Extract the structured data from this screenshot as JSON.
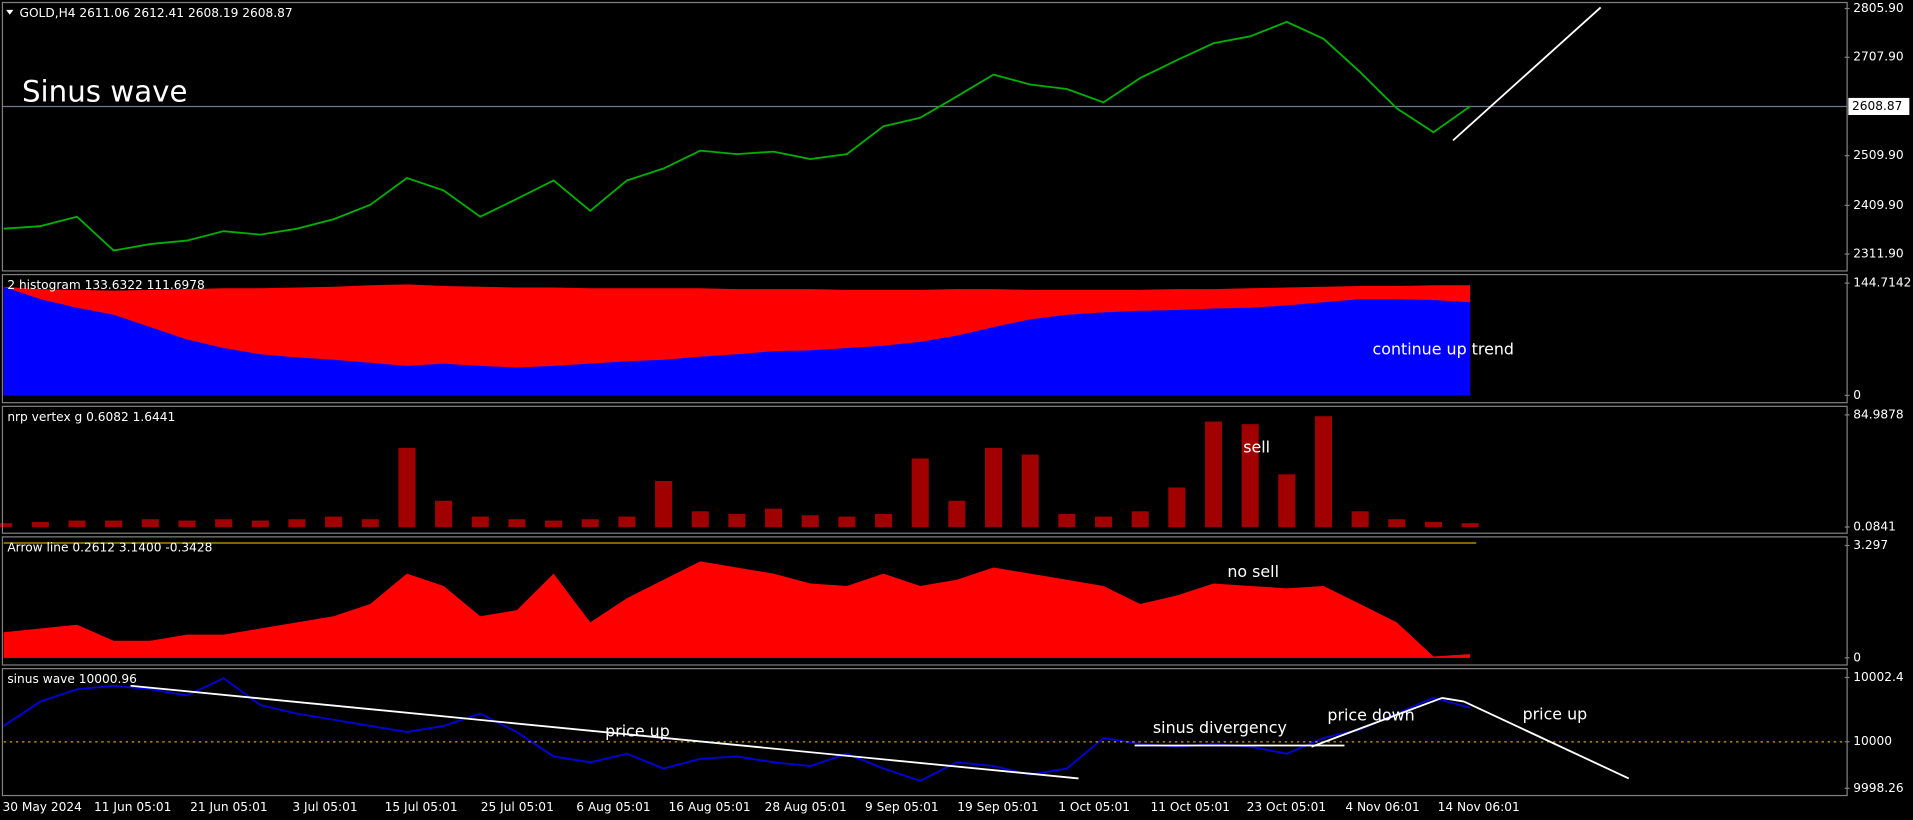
{
  "time_axis": [
    "30 May 2024",
    "11 Jun 05:01",
    "21 Jun 05:01",
    "3 Jul 05:01",
    "15 Jul 05:01",
    "25 Jul 05:01",
    "6 Aug 05:01",
    "16 Aug 05:01",
    "28 Aug 05:01",
    "9 Sep 05:01",
    "19 Sep 05:01",
    "1 Oct 05:01",
    "11 Oct 05:01",
    "23 Oct 05:01",
    "4 Nov 06:01",
    "14 Nov 06:01"
  ],
  "chart_data": [
    {
      "type": "line",
      "title": "GOLD,H4  2611.06 2612.41 2608.19 2608.87",
      "annotations": [
        "Sinus wave"
      ],
      "current_price": 2608.87,
      "series": [
        {
          "color": "#00b000",
          "values": [
            2363,
            2368,
            2387,
            2319,
            2332,
            2339,
            2358,
            2351,
            2363,
            2382,
            2411,
            2465,
            2440,
            2387,
            2423,
            2460,
            2399,
            2460,
            2484,
            2520,
            2513,
            2518,
            2503,
            2513,
            2569,
            2586,
            2629,
            2673,
            2653,
            2644,
            2617,
            2666,
            2702,
            2736,
            2750,
            2779,
            2745,
            2678,
            2605,
            2557,
            2609
          ]
        }
      ],
      "ylim": [
        2278,
        2818
      ],
      "yticks": [
        {
          "value": 2805.9,
          "label": "2805.90"
        },
        {
          "value": 2707.9,
          "label": "2707.90"
        },
        {
          "value": 2509.9,
          "label": "2509.90"
        },
        {
          "value": 2409.9,
          "label": "2409.90"
        },
        {
          "value": 2311.9,
          "label": "2311.90"
        }
      ]
    },
    {
      "type": "area",
      "title": "2 histogram 133.6322 111.6978",
      "annotations": [
        "continue up trend"
      ],
      "series": [
        {
          "color": "#ff0000",
          "values": [
            140,
            137,
            136,
            135,
            136,
            137,
            138,
            138,
            139,
            140,
            142,
            143,
            141,
            140,
            139,
            139,
            138,
            138,
            138,
            138,
            137,
            137,
            137,
            136,
            136,
            136,
            137,
            137,
            136,
            136,
            136,
            136,
            137,
            137,
            138,
            139,
            140,
            141,
            141,
            142,
            142
          ]
        },
        {
          "color": "#0000ff",
          "values": [
            140,
            124,
            113,
            104,
            88,
            72,
            61,
            53,
            49,
            46,
            42,
            38,
            41,
            38,
            36,
            38,
            41,
            44,
            46,
            50,
            53,
            57,
            58,
            61,
            64,
            69,
            77,
            88,
            98,
            104,
            107,
            109,
            110,
            112,
            113,
            116,
            120,
            124,
            124,
            123,
            120
          ]
        }
      ],
      "ylim": [
        -9.4,
        155.7
      ],
      "yticks": [
        144.7142,
        0
      ]
    },
    {
      "type": "bar",
      "title": "nrp vertex g 0.6082 1.6441",
      "annotations": [
        "sell"
      ],
      "series": [
        {
          "color": "#a00000",
          "values": [
            3,
            4,
            5,
            5,
            6,
            5,
            6,
            5,
            6,
            8,
            6,
            60,
            20,
            8,
            6,
            5,
            6,
            8,
            35,
            12,
            10,
            14,
            9,
            8,
            10,
            52,
            20,
            60,
            55,
            10,
            8,
            12,
            30,
            80,
            78,
            40,
            84,
            12,
            6,
            4,
            3
          ]
        }
      ],
      "ylim": [
        -4.6,
        91.5
      ],
      "yticks": [
        84.9878,
        0.0841
      ]
    },
    {
      "type": "area",
      "title": "Arrow line 0.2612 3.1400 -0.3428",
      "annotations": [
        "no sell"
      ],
      "series": [
        {
          "color": "#ff0000",
          "values": [
            0.75,
            0.86,
            0.97,
            0.5,
            0.5,
            0.68,
            0.68,
            0.86,
            1.04,
            1.22,
            1.58,
            2.47,
            2.11,
            1.22,
            1.4,
            2.47,
            1.04,
            1.75,
            2.29,
            2.83,
            2.65,
            2.47,
            2.18,
            2.11,
            2.47,
            2.11,
            2.29,
            2.65,
            2.47,
            2.29,
            2.11,
            1.58,
            1.83,
            2.18,
            2.11,
            2.04,
            2.11,
            1.58,
            1.04,
            0.04,
            0.11
          ]
        }
      ],
      "ylim": [
        -0.21,
        3.55
      ],
      "yticks": [
        3.297,
        0
      ]
    },
    {
      "type": "line",
      "title": "sinus wave 10000.96",
      "annotations": [
        "price up",
        "sinus divergency",
        "price down",
        "price up"
      ],
      "series": [
        {
          "color": "#0000dd",
          "values": [
            10000.59,
            10001.5,
            10001.96,
            10002.09,
            10001.96,
            10001.73,
            10002.37,
            10001.37,
            10001.05,
            10000.82,
            10000.59,
            10000.36,
            10000.59,
            10001.05,
            10000.36,
            9999.45,
            9999.23,
            9999.55,
            9999.0,
            9999.36,
            9999.45,
            9999.23,
            9999.09,
            9999.55,
            9999.0,
            9998.54,
            9999.23,
            9999.09,
            9998.77,
            9999.0,
            10000.14,
            9999.91,
            9999.82,
            9999.91,
            9999.82,
            9999.55,
            10000.14,
            10000.46,
            10001.05,
            10001.64,
            10001.27
          ]
        }
      ],
      "ylim": [
        9997.99,
        10002.73
      ],
      "yticks": [
        10002.4,
        10000,
        9998.26
      ]
    }
  ]
}
